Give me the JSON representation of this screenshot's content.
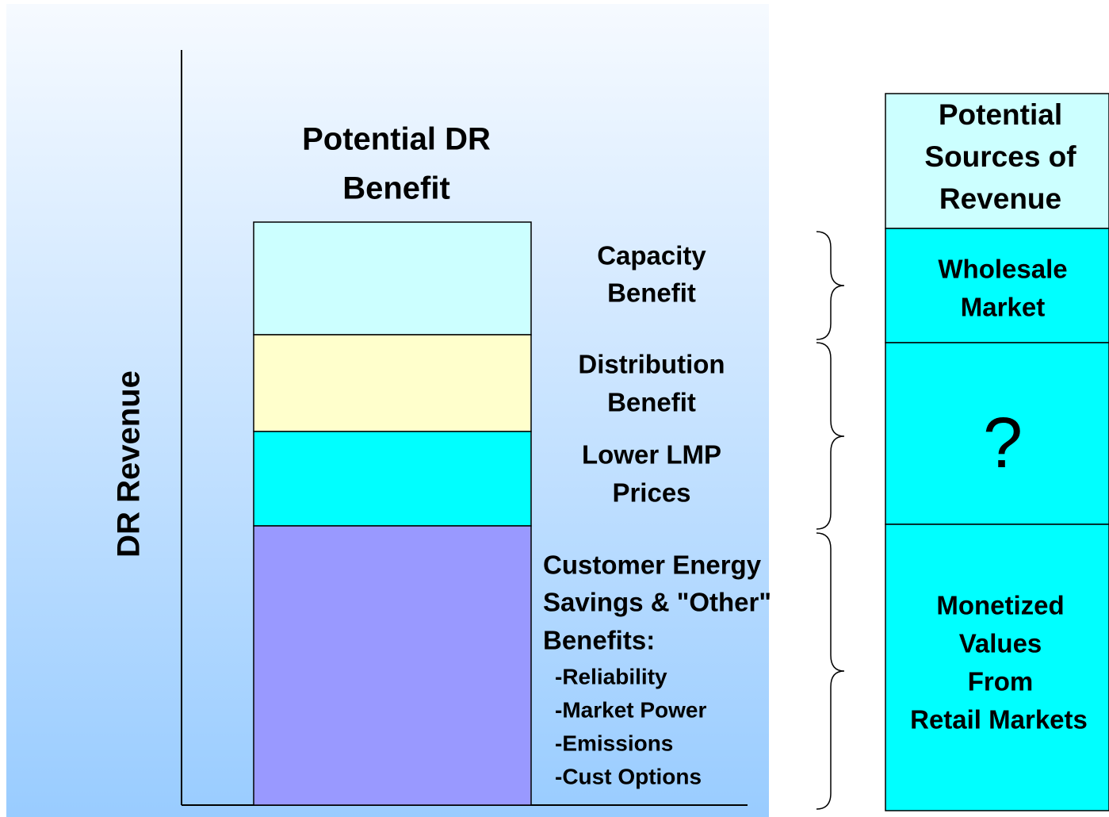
{
  "axis_label": "DR Revenue",
  "bar": {
    "title": [
      "Potential DR",
      "Benefit"
    ],
    "segments": [
      {
        "label": [
          "Capacity",
          "Benefit"
        ]
      },
      {
        "label": [
          "Distribution",
          "Benefit"
        ]
      },
      {
        "label": [
          "Lower LMP",
          "Prices"
        ]
      },
      {
        "label": [
          "Customer Energy",
          "Savings & \"Other\"",
          "Benefits:"
        ],
        "items": [
          "-Reliability",
          "-Market Power",
          "-Emissions",
          "-Cust Options"
        ]
      }
    ]
  },
  "table": {
    "header": [
      "Potential",
      "Sources of",
      "Revenue"
    ],
    "rows": [
      [
        "Wholesale",
        "Market"
      ],
      [
        "?"
      ],
      [
        "Monetized",
        "Values",
        "From",
        "Retail Markets"
      ]
    ]
  }
}
